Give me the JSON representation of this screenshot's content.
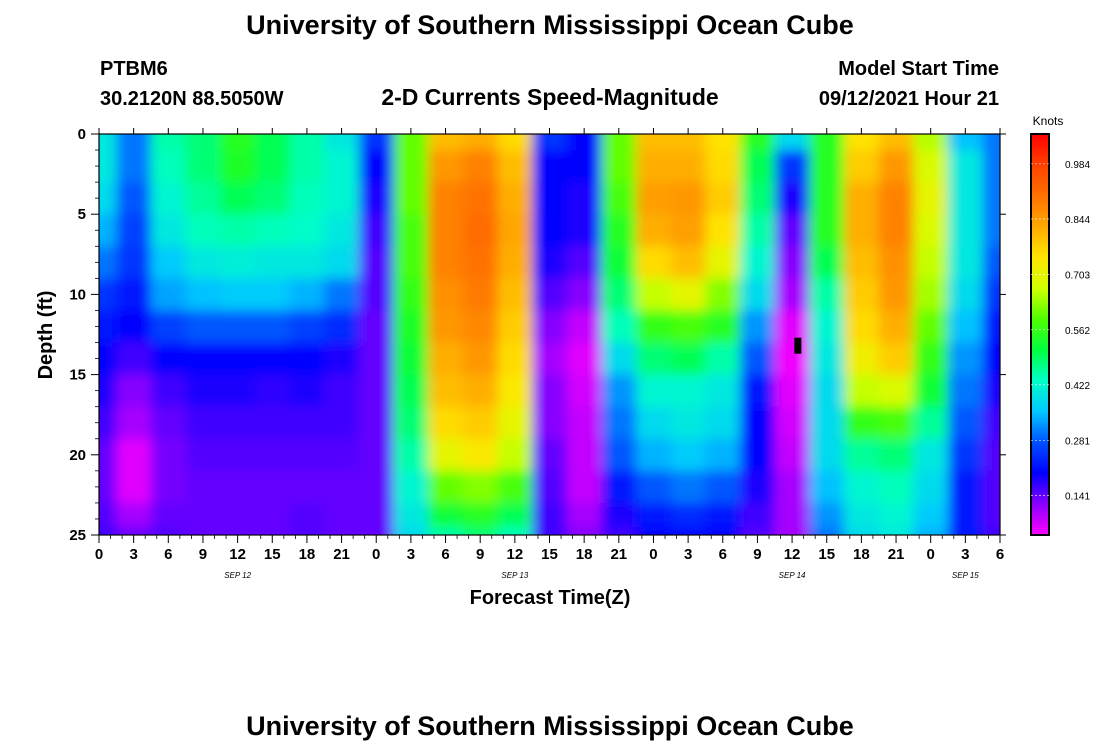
{
  "header": {
    "title_top": "University of Southern Mississippi Ocean Cube",
    "title_bottom": "University of Southern Mississippi Ocean Cube",
    "station_id": "PTBM6",
    "station_coords": "30.2120N  88.5050W",
    "model_start_label": "Model Start Time",
    "model_start_value": "09/12/2021 Hour 21"
  },
  "chart_data": {
    "type": "heatmap",
    "title": "2-D Currents Speed-Magnitude",
    "xlabel": "Forecast Time(Z)",
    "ylabel": "Depth (ft)",
    "x_range_hours": [
      0,
      78
    ],
    "x_tick_labels": [
      "0",
      "3",
      "6",
      "9",
      "12",
      "15",
      "18",
      "21",
      "0",
      "3",
      "6",
      "9",
      "12",
      "15",
      "18",
      "21",
      "0",
      "3",
      "6",
      "9",
      "12",
      "15",
      "18",
      "21",
      "0",
      "3",
      "6"
    ],
    "date_labels": [
      {
        "hour": 12,
        "text": "SEP 12"
      },
      {
        "hour": 36,
        "text": "SEP 13"
      },
      {
        "hour": 60,
        "text": "SEP 14"
      },
      {
        "hour": 75,
        "text": "SEP 15"
      }
    ],
    "y_range_ft": [
      0,
      25
    ],
    "y_tick_labels": [
      "0",
      "5",
      "10",
      "15",
      "20",
      "25"
    ],
    "colorbar": {
      "title": "Knots",
      "range": [
        0.04,
        1.06
      ],
      "tick_values": [
        0.141,
        0.281,
        0.422,
        0.562,
        0.703,
        0.844,
        0.984
      ],
      "tick_labels": [
        "0.141",
        "0.281",
        "0.422",
        "0.562",
        "0.703",
        "0.844",
        "0.984"
      ],
      "colors": [
        "#ff00ff",
        "#8a00ff",
        "#0000ff",
        "#0050ff",
        "#00c8ff",
        "#00ffc8",
        "#00ff40",
        "#50ff00",
        "#d2ff00",
        "#ffe600",
        "#ffaa00",
        "#ff7000",
        "#ff4000",
        "#ff0000"
      ]
    },
    "columns_hours": [
      0,
      3,
      6,
      9,
      12,
      15,
      18,
      21,
      24,
      27,
      30,
      33,
      36,
      39,
      42,
      45,
      48,
      51,
      54,
      57,
      60,
      63,
      66,
      69,
      72,
      75,
      78
    ],
    "rows_depth_ft": [
      0,
      2,
      4,
      6,
      8,
      10,
      12,
      14,
      16,
      18,
      20,
      22,
      24,
      25
    ],
    "values_knots": [
      [
        0.4,
        0.3,
        0.45,
        0.48,
        0.55,
        0.5,
        0.45,
        0.4,
        0.25,
        0.6,
        0.8,
        0.82,
        0.76,
        0.25,
        0.2,
        0.6,
        0.8,
        0.8,
        0.75,
        0.55,
        0.38,
        0.55,
        0.75,
        0.8,
        0.65,
        0.35,
        0.3
      ],
      [
        0.4,
        0.3,
        0.44,
        0.48,
        0.54,
        0.5,
        0.45,
        0.42,
        0.2,
        0.6,
        0.85,
        0.88,
        0.8,
        0.2,
        0.2,
        0.6,
        0.82,
        0.82,
        0.76,
        0.5,
        0.25,
        0.55,
        0.78,
        0.85,
        0.68,
        0.4,
        0.3
      ],
      [
        0.38,
        0.28,
        0.42,
        0.46,
        0.5,
        0.48,
        0.44,
        0.42,
        0.18,
        0.6,
        0.88,
        0.9,
        0.82,
        0.2,
        0.18,
        0.58,
        0.84,
        0.85,
        0.78,
        0.48,
        0.18,
        0.55,
        0.82,
        0.88,
        0.7,
        0.4,
        0.3
      ],
      [
        0.34,
        0.26,
        0.4,
        0.44,
        0.45,
        0.44,
        0.43,
        0.4,
        0.16,
        0.58,
        0.88,
        0.91,
        0.83,
        0.2,
        0.18,
        0.55,
        0.82,
        0.84,
        0.75,
        0.45,
        0.14,
        0.55,
        0.82,
        0.88,
        0.68,
        0.4,
        0.3
      ],
      [
        0.3,
        0.25,
        0.36,
        0.4,
        0.41,
        0.4,
        0.4,
        0.38,
        0.15,
        0.58,
        0.88,
        0.9,
        0.82,
        0.18,
        0.15,
        0.52,
        0.76,
        0.8,
        0.7,
        0.42,
        0.12,
        0.5,
        0.8,
        0.86,
        0.66,
        0.4,
        0.28
      ],
      [
        0.25,
        0.22,
        0.33,
        0.35,
        0.36,
        0.36,
        0.34,
        0.3,
        0.15,
        0.56,
        0.86,
        0.89,
        0.8,
        0.15,
        0.12,
        0.48,
        0.66,
        0.7,
        0.62,
        0.38,
        0.1,
        0.45,
        0.78,
        0.85,
        0.64,
        0.38,
        0.25
      ],
      [
        0.22,
        0.2,
        0.26,
        0.28,
        0.28,
        0.28,
        0.26,
        0.24,
        0.14,
        0.54,
        0.85,
        0.87,
        0.78,
        0.12,
        0.08,
        0.44,
        0.56,
        0.58,
        0.55,
        0.32,
        0.06,
        0.42,
        0.76,
        0.82,
        0.6,
        0.35,
        0.22
      ],
      [
        0.2,
        0.16,
        0.2,
        0.2,
        0.2,
        0.2,
        0.2,
        0.18,
        0.14,
        0.52,
        0.82,
        0.85,
        0.76,
        0.1,
        0.06,
        0.38,
        0.48,
        0.5,
        0.45,
        0.28,
        0.05,
        0.4,
        0.72,
        0.78,
        0.56,
        0.32,
        0.2
      ],
      [
        0.18,
        0.12,
        0.16,
        0.18,
        0.18,
        0.17,
        0.18,
        0.16,
        0.14,
        0.5,
        0.8,
        0.82,
        0.74,
        0.12,
        0.07,
        0.32,
        0.42,
        0.42,
        0.4,
        0.22,
        0.06,
        0.38,
        0.66,
        0.68,
        0.52,
        0.3,
        0.18
      ],
      [
        0.16,
        0.1,
        0.14,
        0.16,
        0.16,
        0.16,
        0.16,
        0.16,
        0.14,
        0.48,
        0.76,
        0.78,
        0.7,
        0.12,
        0.08,
        0.3,
        0.38,
        0.4,
        0.38,
        0.2,
        0.07,
        0.38,
        0.56,
        0.58,
        0.46,
        0.28,
        0.16
      ],
      [
        0.14,
        0.06,
        0.13,
        0.15,
        0.15,
        0.15,
        0.15,
        0.15,
        0.14,
        0.45,
        0.7,
        0.74,
        0.66,
        0.14,
        0.08,
        0.28,
        0.34,
        0.36,
        0.34,
        0.2,
        0.08,
        0.38,
        0.46,
        0.48,
        0.4,
        0.25,
        0.15
      ],
      [
        0.14,
        0.06,
        0.13,
        0.14,
        0.14,
        0.14,
        0.14,
        0.14,
        0.14,
        0.42,
        0.6,
        0.62,
        0.58,
        0.15,
        0.08,
        0.22,
        0.28,
        0.3,
        0.28,
        0.18,
        0.1,
        0.35,
        0.42,
        0.44,
        0.38,
        0.22,
        0.15
      ],
      [
        0.15,
        0.1,
        0.14,
        0.14,
        0.14,
        0.14,
        0.15,
        0.14,
        0.14,
        0.4,
        0.52,
        0.55,
        0.5,
        0.16,
        0.1,
        0.18,
        0.22,
        0.24,
        0.22,
        0.16,
        0.1,
        0.32,
        0.4,
        0.42,
        0.36,
        0.22,
        0.15
      ],
      [
        0.16,
        0.14,
        0.15,
        0.14,
        0.14,
        0.14,
        0.15,
        0.14,
        0.14,
        0.38,
        0.45,
        0.48,
        0.44,
        0.16,
        0.12,
        0.16,
        0.2,
        0.2,
        0.2,
        0.15,
        0.1,
        0.3,
        0.38,
        0.4,
        0.34,
        0.22,
        0.16
      ]
    ],
    "annotation": {
      "type": "marker",
      "hour": 60.5,
      "depth_ft": 13.2,
      "color": "#000000"
    }
  }
}
